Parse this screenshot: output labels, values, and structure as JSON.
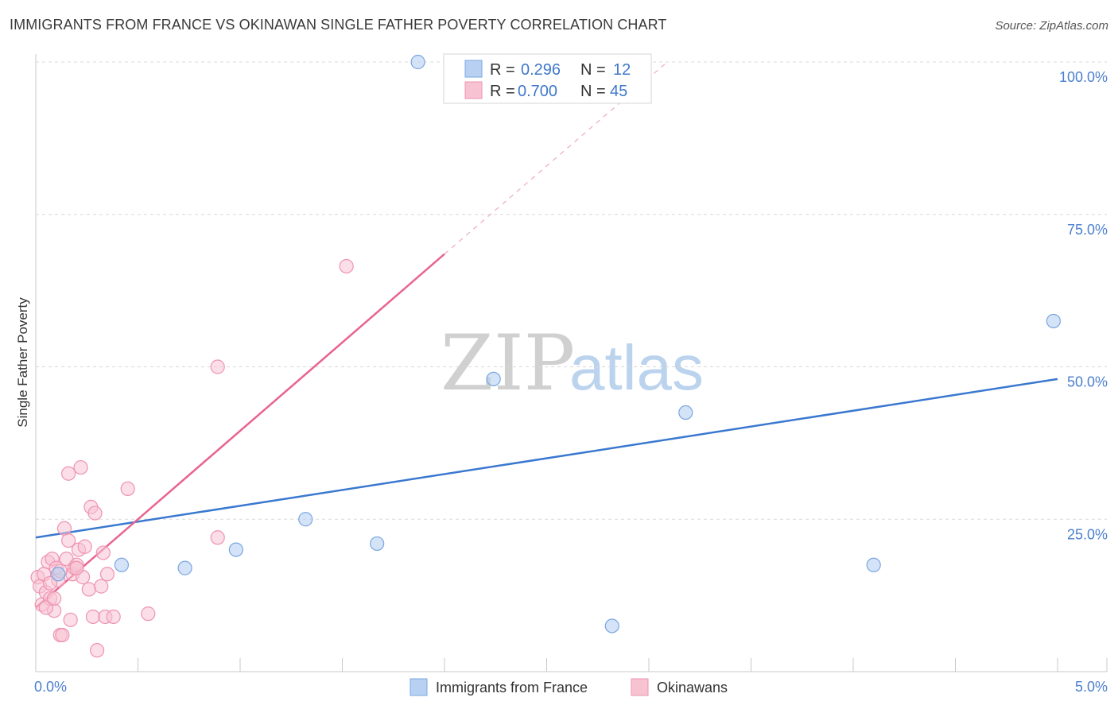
{
  "title": "IMMIGRANTS FROM FRANCE VS OKINAWAN SINGLE FATHER POVERTY CORRELATION CHART",
  "source": "Source: ZipAtlas.com",
  "watermark": {
    "zip": "ZIP",
    "atlas": "atlas"
  },
  "colors": {
    "blue_fill": "#b8d0f2",
    "blue_stroke": "#7aa7e0",
    "blue_line": "#3a78d0",
    "pink_fill": "#f7c3d3",
    "pink_stroke": "#ee93b1",
    "pink_line": "#e8648f",
    "grid": "#d8d8d8",
    "tick_text": "#4a7fcf"
  },
  "legend": {
    "series1": {
      "r_label": "R =",
      "r_value": "0.296",
      "n_label": "N =",
      "n_value": "12"
    },
    "series2": {
      "r_label": "R =",
      "r_value": "0.700",
      "n_label": "N =",
      "n_value": "45"
    }
  },
  "chart_data": {
    "type": "scatter",
    "title": "IMMIGRANTS FROM FRANCE VS OKINAWAN SINGLE FATHER POVERTY CORRELATION CHART",
    "xlabel": "",
    "ylabel": "Single Father Poverty",
    "xlim": [
      0,
      5.0
    ],
    "ylim": [
      0,
      100
    ],
    "x_tick_labels": [
      "0.0%",
      "5.0%"
    ],
    "y_ticks": [
      25,
      50,
      75,
      100
    ],
    "y_tick_labels": [
      "25.0%",
      "50.0%",
      "75.0%",
      "100.0%"
    ],
    "grid": true,
    "series": [
      {
        "name": "Immigrants from France",
        "color": "blue",
        "r": 0.296,
        "n": 12,
        "points": [
          {
            "x": 0.11,
            "y": 16.0
          },
          {
            "x": 0.42,
            "y": 17.5
          },
          {
            "x": 0.73,
            "y": 17.0
          },
          {
            "x": 0.98,
            "y": 20.0
          },
          {
            "x": 1.32,
            "y": 25.0
          },
          {
            "x": 1.67,
            "y": 21.0
          },
          {
            "x": 1.87,
            "y": 100.0
          },
          {
            "x": 2.24,
            "y": 48.0
          },
          {
            "x": 2.82,
            "y": 7.5
          },
          {
            "x": 3.18,
            "y": 42.5
          },
          {
            "x": 4.1,
            "y": 17.5
          },
          {
            "x": 4.98,
            "y": 57.5
          }
        ],
        "trendline": {
          "x1": 0.0,
          "y1": 22.0,
          "x2": 5.0,
          "y2": 48.0
        }
      },
      {
        "name": "Okinawans",
        "color": "pink",
        "r": 0.7,
        "n": 45,
        "points": [
          {
            "x": 0.01,
            "y": 15.5
          },
          {
            "x": 0.02,
            "y": 14.0
          },
          {
            "x": 0.03,
            "y": 11.0
          },
          {
            "x": 0.04,
            "y": 16.0
          },
          {
            "x": 0.05,
            "y": 13.0
          },
          {
            "x": 0.06,
            "y": 18.0
          },
          {
            "x": 0.07,
            "y": 12.0
          },
          {
            "x": 0.08,
            "y": 18.5
          },
          {
            "x": 0.09,
            "y": 10.0
          },
          {
            "x": 0.1,
            "y": 17.0
          },
          {
            "x": 0.11,
            "y": 15.0
          },
          {
            "x": 0.12,
            "y": 6.0
          },
          {
            "x": 0.13,
            "y": 6.0
          },
          {
            "x": 0.14,
            "y": 23.5
          },
          {
            "x": 0.15,
            "y": 18.5
          },
          {
            "x": 0.16,
            "y": 21.5
          },
          {
            "x": 0.17,
            "y": 8.5
          },
          {
            "x": 0.18,
            "y": 16.0
          },
          {
            "x": 0.19,
            "y": 17.0
          },
          {
            "x": 0.2,
            "y": 17.5
          },
          {
            "x": 0.21,
            "y": 20.0
          },
          {
            "x": 0.22,
            "y": 33.5
          },
          {
            "x": 0.23,
            "y": 15.5
          },
          {
            "x": 0.24,
            "y": 20.5
          },
          {
            "x": 0.26,
            "y": 13.5
          },
          {
            "x": 0.27,
            "y": 27.0
          },
          {
            "x": 0.28,
            "y": 9.0
          },
          {
            "x": 0.29,
            "y": 26.0
          },
          {
            "x": 0.3,
            "y": 3.5
          },
          {
            "x": 0.32,
            "y": 14.0
          },
          {
            "x": 0.33,
            "y": 19.5
          },
          {
            "x": 0.34,
            "y": 9.0
          },
          {
            "x": 0.35,
            "y": 16.0
          },
          {
            "x": 0.38,
            "y": 9.0
          },
          {
            "x": 0.45,
            "y": 30.0
          },
          {
            "x": 0.55,
            "y": 9.5
          },
          {
            "x": 0.89,
            "y": 22.0
          },
          {
            "x": 0.89,
            "y": 50.0
          },
          {
            "x": 1.52,
            "y": 66.5
          },
          {
            "x": 0.05,
            "y": 10.5
          },
          {
            "x": 0.07,
            "y": 14.5
          },
          {
            "x": 0.16,
            "y": 32.5
          },
          {
            "x": 0.09,
            "y": 12.0
          },
          {
            "x": 0.2,
            "y": 17.0
          },
          {
            "x": 0.12,
            "y": 16.5
          }
        ],
        "trendline": {
          "x1": 0.0,
          "y1": 10.5,
          "x2": 2.0,
          "y2": 68.5
        },
        "trendline_extension": {
          "x1": 2.0,
          "y1": 68.5,
          "x2": 3.09,
          "y2": 100.0
        }
      }
    ]
  },
  "bottom_legend": {
    "series1": "Immigrants from France",
    "series2": "Okinawans"
  }
}
